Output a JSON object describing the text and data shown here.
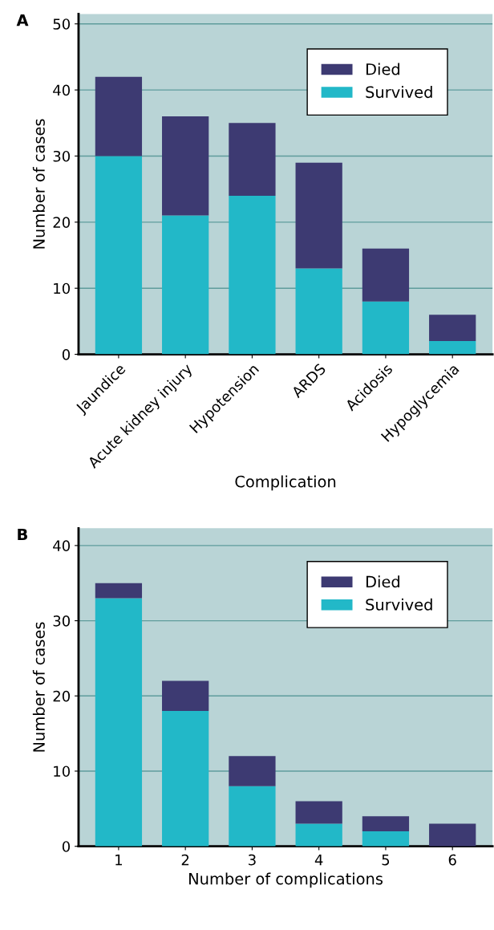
{
  "chart_data": [
    {
      "type": "bar",
      "title": "A",
      "stacked": true,
      "xlabel": "Complication",
      "ylabel": "Number of cases",
      "categories": [
        "Jaundice",
        "Acute kidney injury",
        "Hypotension",
        "ARDS",
        "Acidosis",
        "Hypoglycemia"
      ],
      "series": [
        {
          "name": "Survived",
          "color": "#22b8c8",
          "values": [
            30,
            21,
            24,
            13,
            8,
            2
          ]
        },
        {
          "name": "Died",
          "color": "#3d3a72",
          "values": [
            12,
            15,
            11,
            16,
            8,
            4
          ]
        }
      ],
      "ylim": [
        0,
        51.5
      ],
      "yticks": [
        0,
        10,
        20,
        30,
        40,
        50
      ],
      "grid": "y",
      "legend": "top right"
    },
    {
      "type": "bar",
      "title": "B",
      "stacked": true,
      "xlabel": "Number of complications",
      "ylabel": "Number of cases",
      "categories": [
        "1",
        "2",
        "3",
        "4",
        "5",
        "6"
      ],
      "series": [
        {
          "name": "Survived",
          "color": "#22b8c8",
          "values": [
            33,
            18,
            8,
            3,
            2,
            0
          ]
        },
        {
          "name": "Died",
          "color": "#3d3a72",
          "values": [
            2,
            4,
            4,
            3,
            2,
            3
          ]
        }
      ],
      "ylim": [
        0,
        42.3
      ],
      "yticks": [
        0,
        10,
        20,
        30,
        40
      ],
      "grid": "y",
      "legend": "top right"
    }
  ]
}
